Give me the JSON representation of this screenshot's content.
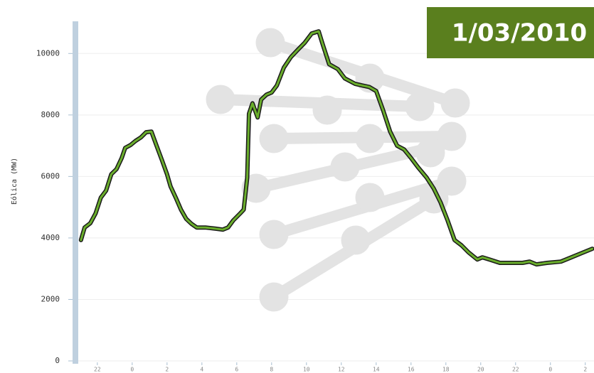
{
  "chart_data": {
    "type": "line",
    "date_badge": "1/03/2010",
    "y_label": "Eólica (MW)",
    "ylim": [
      0,
      11000
    ],
    "yticks": [
      0,
      2000,
      4000,
      6000,
      8000,
      10000
    ],
    "xlim": [
      20.7,
      50.5
    ],
    "xticks": [
      {
        "value": 22,
        "label": "22"
      },
      {
        "value": 24,
        "label": "0"
      },
      {
        "value": 26,
        "label": "2"
      },
      {
        "value": 28,
        "label": "4"
      },
      {
        "value": 30,
        "label": "6"
      },
      {
        "value": 32,
        "label": "8"
      },
      {
        "value": 34,
        "label": "10"
      },
      {
        "value": 36,
        "label": "12"
      },
      {
        "value": 38,
        "label": "14"
      },
      {
        "value": 40,
        "label": "16"
      },
      {
        "value": 42,
        "label": "18"
      },
      {
        "value": 44,
        "label": "20"
      },
      {
        "value": 46,
        "label": "22"
      },
      {
        "value": 48,
        "label": "0"
      },
      {
        "value": 50,
        "label": "2"
      }
    ],
    "grid": true,
    "x": [
      21.06,
      21.27,
      21.6,
      21.9,
      22.2,
      22.5,
      22.8,
      23.1,
      23.4,
      23.6,
      23.9,
      24.2,
      24.5,
      24.8,
      25.1,
      25.4,
      25.7,
      26.0,
      26.2,
      26.5,
      26.8,
      27.1,
      27.4,
      27.7,
      28.2,
      28.8,
      29.2,
      29.5,
      29.8,
      30.2,
      30.4,
      30.6,
      30.7,
      30.9,
      31.2,
      31.4,
      31.7,
      32.0,
      32.3,
      32.7,
      33.1,
      33.5,
      33.9,
      34.3,
      34.7,
      34.9,
      35.3,
      35.8,
      36.2,
      36.8,
      37.2,
      37.6,
      38.0,
      38.4,
      38.8,
      39.2,
      39.6,
      40.0,
      40.4,
      40.9,
      41.3,
      41.7,
      42.1,
      42.5,
      42.9,
      43.3,
      43.8,
      44.1,
      44.5,
      45.1,
      45.8,
      46.4,
      46.8,
      47.2,
      47.8,
      48.6,
      49.2,
      49.8,
      50.4
    ],
    "series": [
      {
        "name": "Eólica",
        "color": "#6aae2c",
        "values": [
          3930,
          4340,
          4480,
          4800,
          5310,
          5540,
          6070,
          6240,
          6600,
          6930,
          7020,
          7160,
          7270,
          7440,
          7460,
          7000,
          6540,
          6070,
          5680,
          5310,
          4920,
          4620,
          4460,
          4340,
          4340,
          4300,
          4270,
          4340,
          4570,
          4800,
          4920,
          5960,
          8040,
          8380,
          7920,
          8500,
          8660,
          8730,
          8960,
          9540,
          9880,
          10120,
          10350,
          10650,
          10720,
          10350,
          9650,
          9490,
          9190,
          9010,
          8960,
          8910,
          8780,
          8150,
          7460,
          7000,
          6880,
          6600,
          6300,
          5960,
          5610,
          5150,
          4570,
          3930,
          3760,
          3530,
          3300,
          3370,
          3300,
          3190,
          3190,
          3190,
          3230,
          3140,
          3190,
          3230,
          3370,
          3510,
          3650
        ]
      }
    ]
  }
}
